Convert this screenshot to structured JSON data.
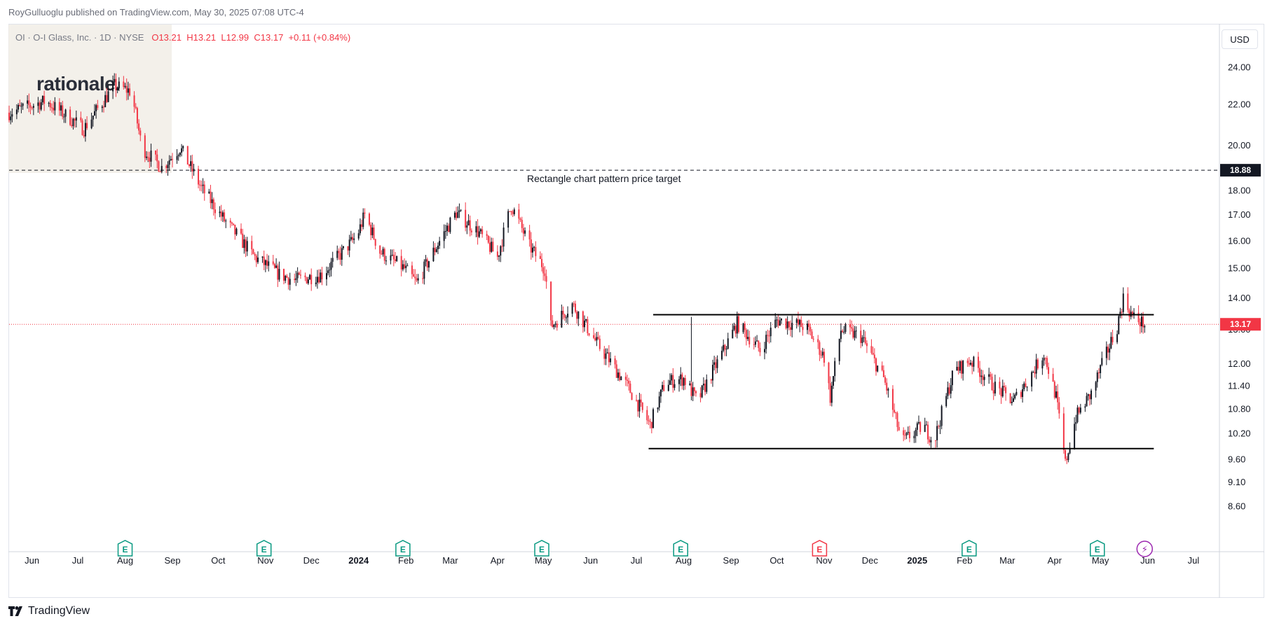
{
  "header": {
    "published": "RoyGulluoglu published on TradingView.com, May 30, 2025 07:08 UTC-4"
  },
  "legend": {
    "symbol": "OI · O-I Glass, Inc. · 1D · NYSE",
    "open": "O13.21",
    "high": "H13.21",
    "low": "L12.99",
    "close": "C13.17",
    "change": "+0.11 (+0.84%)"
  },
  "logo": {
    "text": "rationale."
  },
  "currency": "USD",
  "footer": {
    "brand": "TradingView"
  },
  "colors": {
    "up": "#131722",
    "down": "#f23645",
    "earnings": "#089981",
    "earnings_next": "#f23645",
    "dividend": "#9c27b0"
  },
  "chart_data": {
    "type": "candlestick",
    "title": "",
    "ylabel": "",
    "xlabel": "",
    "scale": "log",
    "ylim": [
      8.4,
      26.5
    ],
    "y_ticks": [
      "24.00",
      "22.00",
      "20.00",
      "18.00",
      "17.00",
      "16.00",
      "15.00",
      "14.00",
      "13.00",
      "12.00",
      "11.40",
      "10.80",
      "10.20",
      "9.60",
      "9.10",
      "8.60"
    ],
    "x_ticks": [
      "Jun",
      "Jul",
      "Aug",
      "Sep",
      "Oct",
      "Nov",
      "Dec",
      "2024",
      "Feb",
      "Mar",
      "Apr",
      "May",
      "Jun",
      "Jul",
      "Aug",
      "Sep",
      "Oct",
      "Nov",
      "Dec",
      "2025",
      "Feb",
      "Mar",
      "Apr",
      "May",
      "Jun",
      "Jul"
    ],
    "x_range": [
      "2023-05-17",
      "2025-07-18"
    ],
    "price_keypoints": [
      [
        "2023-05-17",
        21.6
      ],
      [
        "2023-06-10",
        22.2
      ],
      [
        "2023-07-05",
        20.8
      ],
      [
        "2023-07-25",
        23.0
      ],
      [
        "2023-08-05",
        22.7
      ],
      [
        "2023-08-12",
        19.9
      ],
      [
        "2023-08-25",
        19.0
      ],
      [
        "2023-09-06",
        19.9
      ],
      [
        "2023-09-20",
        18.1
      ],
      [
        "2023-10-05",
        16.8
      ],
      [
        "2023-10-25",
        15.4
      ],
      [
        "2023-11-10",
        14.8
      ],
      [
        "2023-11-20",
        14.6
      ],
      [
        "2023-12-08",
        14.8
      ],
      [
        "2023-12-20",
        15.5
      ],
      [
        "2023-12-31",
        16.2
      ],
      [
        "2024-01-05",
        17.0
      ],
      [
        "2024-01-15",
        15.6
      ],
      [
        "2024-01-31",
        15.0
      ],
      [
        "2024-02-08",
        14.5
      ],
      [
        "2024-02-20",
        15.7
      ],
      [
        "2024-03-05",
        17.1
      ],
      [
        "2024-03-20",
        16.3
      ],
      [
        "2024-04-01",
        15.4
      ],
      [
        "2024-04-10",
        17.4
      ],
      [
        "2024-04-22",
        15.8
      ],
      [
        "2024-05-02",
        15.0
      ],
      [
        "2024-05-06",
        13.1
      ],
      [
        "2024-05-20",
        13.8
      ],
      [
        "2024-06-05",
        12.6
      ],
      [
        "2024-06-25",
        11.4
      ],
      [
        "2024-07-10",
        10.4
      ],
      [
        "2024-07-20",
        11.5
      ],
      [
        "2024-08-01",
        11.6
      ],
      [
        "2024-08-10",
        11.0
      ],
      [
        "2024-08-25",
        12.2
      ],
      [
        "2024-09-05",
        13.2
      ],
      [
        "2024-09-20",
        12.4
      ],
      [
        "2024-10-01",
        13.3
      ],
      [
        "2024-10-20",
        13.1
      ],
      [
        "2024-11-01",
        12.2
      ],
      [
        "2024-11-05",
        11.1
      ],
      [
        "2024-11-12",
        13.0
      ],
      [
        "2024-11-25",
        12.8
      ],
      [
        "2024-12-10",
        11.6
      ],
      [
        "2024-12-22",
        10.0
      ],
      [
        "2025-01-05",
        10.4
      ],
      [
        "2025-01-12",
        10.0
      ],
      [
        "2025-01-25",
        11.8
      ],
      [
        "2025-02-05",
        12.1
      ],
      [
        "2025-02-20",
        11.4
      ],
      [
        "2025-03-05",
        11.0
      ],
      [
        "2025-03-15",
        11.6
      ],
      [
        "2025-03-25",
        12.3
      ],
      [
        "2025-04-02",
        11.1
      ],
      [
        "2025-04-08",
        9.5
      ],
      [
        "2025-04-15",
        10.6
      ],
      [
        "2025-04-25",
        11.2
      ],
      [
        "2025-05-05",
        12.3
      ],
      [
        "2025-05-12",
        13.1
      ],
      [
        "2025-05-16",
        14.0
      ],
      [
        "2025-05-22",
        13.4
      ],
      [
        "2025-05-30",
        13.17
      ]
    ],
    "gaps": [
      [
        "2023-08-16",
        19.3
      ],
      [
        "2024-05-06",
        13.1
      ],
      [
        "2024-08-06",
        13.4
      ]
    ],
    "current_price": "13.17",
    "price_target": {
      "value": "18.88",
      "label": "Rectangle chart pattern price target"
    },
    "rectangle": {
      "top": 13.47,
      "bottom": 9.85,
      "top_span": [
        "2024-07-12",
        "2025-06-05"
      ],
      "bottom_span": [
        "2024-07-09",
        "2025-06-05"
      ]
    },
    "events": [
      {
        "date": "2023-08-01",
        "type": "earnings",
        "label": "E"
      },
      {
        "date": "2023-10-31",
        "type": "earnings",
        "label": "E"
      },
      {
        "date": "2024-01-30",
        "type": "earnings",
        "label": "E"
      },
      {
        "date": "2024-04-30",
        "type": "earnings",
        "label": "E"
      },
      {
        "date": "2024-07-30",
        "type": "earnings",
        "label": "E"
      },
      {
        "date": "2024-10-29",
        "type": "earnings_next",
        "label": "E"
      },
      {
        "date": "2025-02-04",
        "type": "earnings",
        "label": "E"
      },
      {
        "date": "2025-04-29",
        "type": "earnings",
        "label": "E"
      },
      {
        "date": "2025-05-30",
        "type": "dividend",
        "label": "⚡"
      }
    ]
  }
}
